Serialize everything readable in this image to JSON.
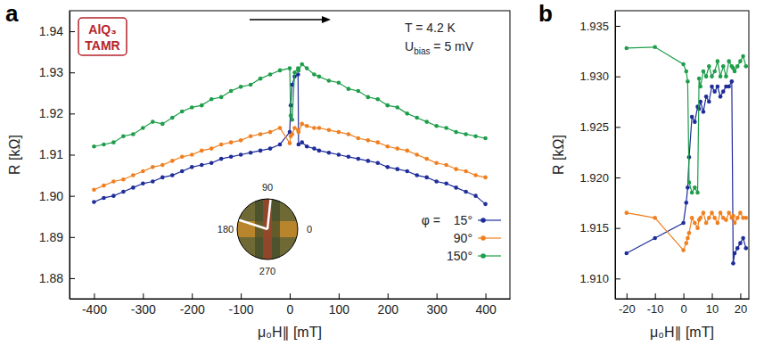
{
  "chart_data": [
    {
      "type": "line",
      "panel_label": "a",
      "badge": [
        "AlQ₃",
        "TAMR"
      ],
      "annotations": [
        {
          "text": "T = 4.2 K"
        },
        {
          "text": "U",
          "subscript": "bias",
          "suffix": " = 5 mV"
        }
      ],
      "x_label": "μ₀H∥ [mT]",
      "y_label": "R [kΩ]",
      "x": [
        -400,
        -380,
        -360,
        -340,
        -320,
        -300,
        -280,
        -260,
        -240,
        -220,
        -200,
        -180,
        -160,
        -140,
        -120,
        -100,
        -80,
        -60,
        -40,
        -20,
        0,
        2,
        5,
        10,
        17,
        18,
        25,
        35,
        50,
        60,
        80,
        100,
        120,
        140,
        160,
        180,
        200,
        220,
        240,
        260,
        280,
        300,
        320,
        340,
        360,
        380,
        400
      ],
      "series": [
        {
          "name": "15°",
          "color": "#1f2d9a",
          "values": [
            1.8985,
            1.8995,
            1.9,
            1.901,
            1.902,
            1.903,
            1.9035,
            1.9045,
            1.905,
            1.906,
            1.907,
            1.9075,
            1.908,
            1.909,
            1.9095,
            1.91,
            1.9105,
            1.911,
            1.9115,
            1.9125,
            1.9155,
            1.922,
            1.927,
            1.929,
            1.9295,
            1.9125,
            1.913,
            1.912,
            1.9115,
            1.911,
            1.9105,
            1.91,
            1.9095,
            1.909,
            1.9085,
            1.908,
            1.907,
            1.9065,
            1.906,
            1.905,
            1.9045,
            1.9035,
            1.903,
            1.902,
            1.901,
            1.9,
            1.898
          ]
        },
        {
          "name": "90°",
          "color": "#f07f1f",
          "values": [
            1.9015,
            1.9025,
            1.9035,
            1.904,
            1.905,
            1.906,
            1.907,
            1.9075,
            1.9085,
            1.9095,
            1.91,
            1.911,
            1.9115,
            1.9125,
            1.913,
            1.9135,
            1.9145,
            1.915,
            1.9155,
            1.9165,
            1.9128,
            1.9145,
            1.915,
            1.9165,
            1.916,
            1.9155,
            1.9175,
            1.917,
            1.9165,
            1.9165,
            1.916,
            1.9155,
            1.915,
            1.914,
            1.9135,
            1.913,
            1.912,
            1.9115,
            1.911,
            1.91,
            1.909,
            1.908,
            1.9075,
            1.9065,
            1.906,
            1.905,
            1.9045
          ]
        },
        {
          "name": "150°",
          "color": "#1e9e4a",
          "values": [
            1.912,
            1.9125,
            1.913,
            1.9145,
            1.915,
            1.9165,
            1.918,
            1.9175,
            1.919,
            1.9205,
            1.9215,
            1.922,
            1.9235,
            1.924,
            1.9255,
            1.9265,
            1.927,
            1.9285,
            1.9295,
            1.9305,
            1.931,
            1.9195,
            1.9185,
            1.93,
            1.931,
            1.9305,
            1.932,
            1.931,
            1.9295,
            1.929,
            1.928,
            1.9275,
            1.926,
            1.9255,
            1.924,
            1.9235,
            1.922,
            1.9215,
            1.92,
            1.919,
            1.918,
            1.917,
            1.9165,
            1.9155,
            1.915,
            1.9145,
            1.914
          ]
        }
      ],
      "xlim": [
        -450,
        450
      ],
      "xticks": [
        -400,
        -300,
        -200,
        -100,
        0,
        100,
        200,
        300,
        400
      ],
      "ylim": [
        1.875,
        1.945
      ],
      "yticks": [
        1.88,
        1.89,
        {
          "value": 1.9,
          "label": "1.90"
        },
        1.91,
        1.92,
        1.93,
        1.94
      ],
      "legend": "lower right",
      "legend_title": "φ =",
      "marker": "circle",
      "line_style": "solid",
      "inset": {
        "dial_ticks": [
          90,
          180,
          0,
          270
        ]
      }
    },
    {
      "type": "line",
      "panel_label": "b",
      "x_label": "μ₀H∥ [mT]",
      "y_label": "R [kΩ]",
      "x": [
        -20,
        -10,
        0,
        1,
        1.5,
        2,
        3,
        4,
        5,
        5.5,
        6,
        7,
        8,
        9,
        10,
        11,
        12,
        13,
        14,
        15,
        16,
        17,
        17.5,
        18,
        19,
        20,
        21,
        22
      ],
      "series": [
        {
          "color": "#1f2d9a",
          "values": [
            1.9125,
            1.914,
            1.9155,
            1.9175,
            1.919,
            1.922,
            1.926,
            1.9255,
            1.927,
            1.9268,
            1.9275,
            1.9265,
            1.928,
            1.9275,
            1.929,
            1.9285,
            1.929,
            1.928,
            1.9285,
            1.929,
            1.929,
            1.9295,
            1.9115,
            1.9125,
            1.913,
            1.9135,
            1.914,
            1.913
          ]
        },
        {
          "color": "#f07f1f",
          "values": [
            1.9165,
            1.916,
            1.9128,
            1.9135,
            1.914,
            1.9145,
            1.916,
            1.9155,
            1.915,
            1.9158,
            1.916,
            1.9165,
            1.9155,
            1.916,
            1.9165,
            1.916,
            1.9155,
            1.9165,
            1.916,
            1.9158,
            1.9165,
            1.916,
            1.9162,
            1.9155,
            1.916,
            1.9165,
            1.916,
            1.916
          ]
        },
        {
          "color": "#1e9e4a",
          "values": [
            1.9328,
            1.9329,
            1.9312,
            1.9305,
            1.9295,
            1.9195,
            1.9185,
            1.919,
            1.9185,
            1.9298,
            1.929,
            1.9305,
            1.93,
            1.931,
            1.93,
            1.9305,
            1.9315,
            1.93,
            1.931,
            1.93,
            1.9315,
            1.931,
            1.9308,
            1.9305,
            1.931,
            1.9315,
            1.932,
            1.931
          ]
        }
      ],
      "xlim": [
        -24,
        23
      ],
      "xticks": [
        -20,
        -10,
        0,
        10,
        20
      ],
      "ylim": [
        1.908,
        1.9365
      ],
      "yticks": [
        {
          "value": 1.91,
          "label": "1.910"
        },
        1.915,
        {
          "value": 1.92,
          "label": "1.920"
        },
        1.925,
        {
          "value": 1.93,
          "label": "1.930"
        },
        1.935
      ],
      "marker": "circle",
      "line_style": "solid"
    }
  ]
}
